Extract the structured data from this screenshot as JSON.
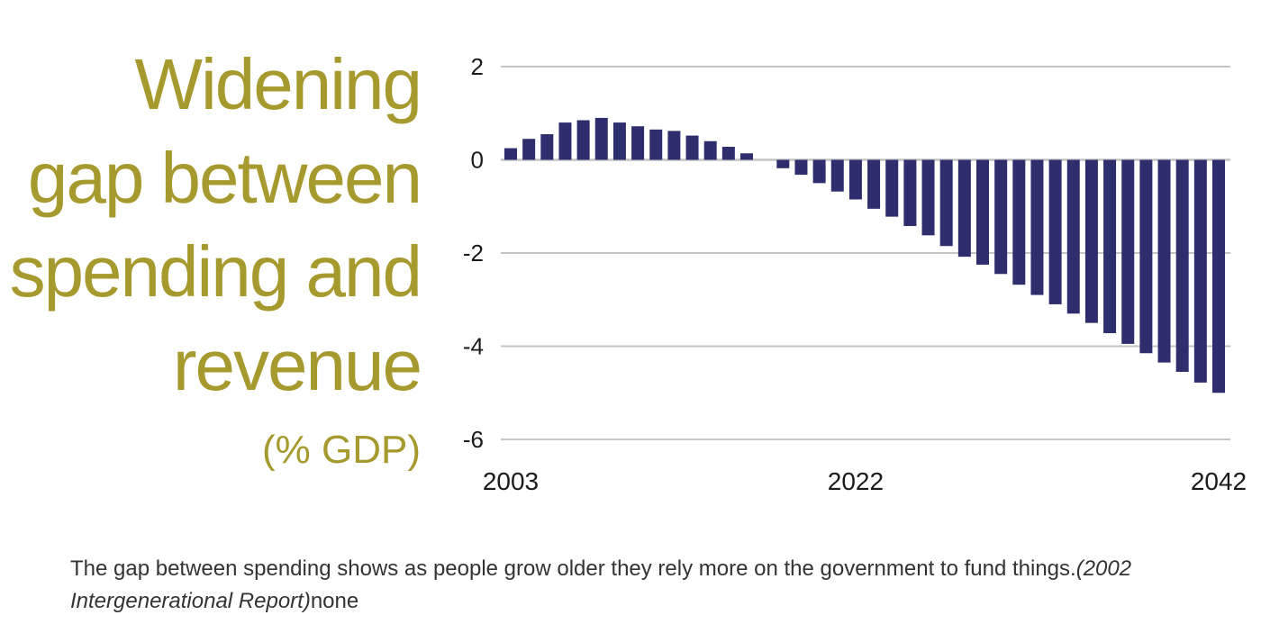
{
  "chart_data": {
    "type": "bar",
    "title_lines": [
      "Widening",
      "gap between",
      "spending and",
      "revenue"
    ],
    "subtitle": "(% GDP)",
    "x": [
      2003,
      2004,
      2005,
      2006,
      2007,
      2008,
      2009,
      2010,
      2011,
      2012,
      2013,
      2014,
      2015,
      2016,
      2017,
      2018,
      2019,
      2020,
      2021,
      2022,
      2023,
      2024,
      2025,
      2026,
      2027,
      2028,
      2029,
      2030,
      2031,
      2032,
      2033,
      2034,
      2035,
      2036,
      2037,
      2038,
      2039,
      2040,
      2041,
      2042
    ],
    "values": [
      0.25,
      0.45,
      0.55,
      0.8,
      0.85,
      0.9,
      0.8,
      0.72,
      0.65,
      0.62,
      0.52,
      0.4,
      0.28,
      0.14,
      0.0,
      -0.18,
      -0.32,
      -0.5,
      -0.68,
      -0.85,
      -1.05,
      -1.22,
      -1.42,
      -1.62,
      -1.85,
      -2.08,
      -2.25,
      -2.45,
      -2.68,
      -2.9,
      -3.1,
      -3.3,
      -3.5,
      -3.72,
      -3.95,
      -4.15,
      -4.35,
      -4.55,
      -4.78,
      -5.0
    ],
    "x_tick_labels": [
      "2003",
      "2022",
      "2042"
    ],
    "y_ticks": [
      2,
      0,
      -2,
      -4,
      -6
    ],
    "y_tick_labels": [
      "2",
      "0",
      "-2",
      "-4",
      "-6"
    ],
    "ylim": [
      -6,
      2
    ],
    "grid": true,
    "colors": {
      "bar": "#2e2e6e",
      "grid": "#c4c4c4",
      "title": "#a69a2e",
      "tick": "#1a1a1a"
    }
  },
  "caption": {
    "text": "The gap between spending shows as people grow older they rely more on the government to fund things.",
    "source": "(2002 Intergenerational Report)",
    "suffix": "none"
  }
}
